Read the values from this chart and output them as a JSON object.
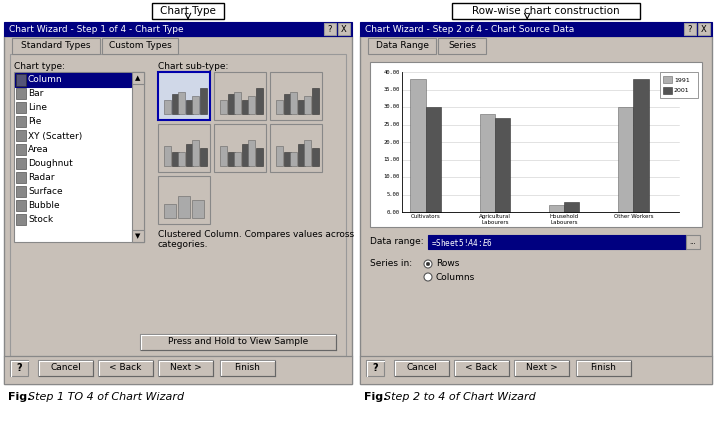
{
  "bg_color": "#c8c0b8",
  "title_box1": "Chart Type",
  "title_box2": "Row-wise chart construction",
  "fig_caption1": "Step 1 TO 4 of Chart Wizard",
  "fig_caption2": "Step 2 to 4 of Chart Wizard",
  "dialog1_title": "Chart Wizard - Step 1 of 4 - Chart Type",
  "dialog2_title": "Chart Wizard - Step 2 of 4 - Chart Source Data",
  "chart_types": [
    "Column",
    "Bar",
    "Line",
    "Pie",
    "XY (Scatter)",
    "Area",
    "Doughnut",
    "Radar",
    "Surface",
    "Bubble",
    "Stock"
  ],
  "tab1_left": "Standard Types",
  "tab1_right": "Custom Types",
  "tab2_left": "Data Range",
  "tab2_right": "Series",
  "chart_label": "Chart type:",
  "subtype_label": "Chart sub-type:",
  "description": "Clustered Column. Compares values across\ncategories.",
  "press_hold": "Press and Hold to View Sample",
  "data_range_label": "Data range:",
  "data_range_value": "=Sheet5!$A$4:$E$6",
  "series_in_label": "Series in:",
  "series_rows": "Rows",
  "series_columns": "Columns",
  "bar_categories": [
    "Cultivators",
    "Agricultural\nLabourers",
    "Household\nLabourers",
    "Other Workers"
  ],
  "bar_1991": [
    38,
    28,
    2,
    30
  ],
  "bar_2001": [
    30,
    27,
    3,
    38
  ],
  "legend_1991": "1991",
  "legend_2001": "2001",
  "y_ticks": [
    "0.00",
    "5.00",
    "10.00",
    "15.00",
    "20.00",
    "25.00",
    "30.00",
    "35.00",
    "40.00"
  ],
  "color_1991": "#b0b0b0",
  "color_2001": "#555555",
  "button_cancel": "Cancel",
  "button_back": "< Back",
  "button_next": "Next >",
  "button_finish": "Finish",
  "titlebar_color": "#000080"
}
